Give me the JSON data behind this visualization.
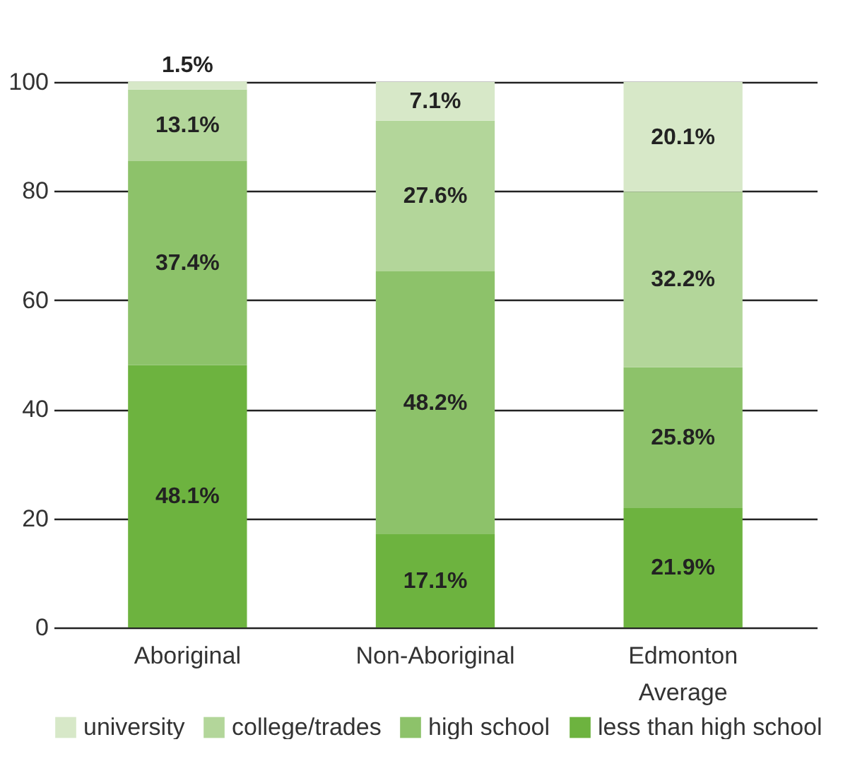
{
  "chart_data": {
    "type": "bar",
    "stacked": true,
    "categories": [
      "Aboriginal",
      "Non-Aboriginal",
      "Edmonton Average"
    ],
    "series": [
      {
        "name": "less than high school",
        "color": "#6db33f",
        "values": [
          48.1,
          17.1,
          21.9
        ],
        "value_labels": [
          "48.1%",
          "17.1%",
          "21.9%"
        ]
      },
      {
        "name": "high school",
        "color": "#8dc26a",
        "values": [
          37.4,
          48.2,
          25.8
        ],
        "value_labels": [
          "37.4%",
          "48.2%",
          "25.8%"
        ]
      },
      {
        "name": "college/trades",
        "color": "#b3d69a",
        "values": [
          13.1,
          27.6,
          32.2
        ],
        "value_labels": [
          "13.1%",
          "27.6%",
          "32.2%"
        ]
      },
      {
        "name": "university",
        "color": "#d7e8c8",
        "values": [
          1.5,
          7.1,
          20.1
        ],
        "value_labels": [
          "1.5%",
          "7.1%",
          "20.1%"
        ]
      }
    ],
    "ylim": [
      0,
      100
    ],
    "yticks": [
      0,
      20,
      40,
      60,
      80,
      100
    ],
    "grid": "y",
    "legend": "bottom"
  }
}
